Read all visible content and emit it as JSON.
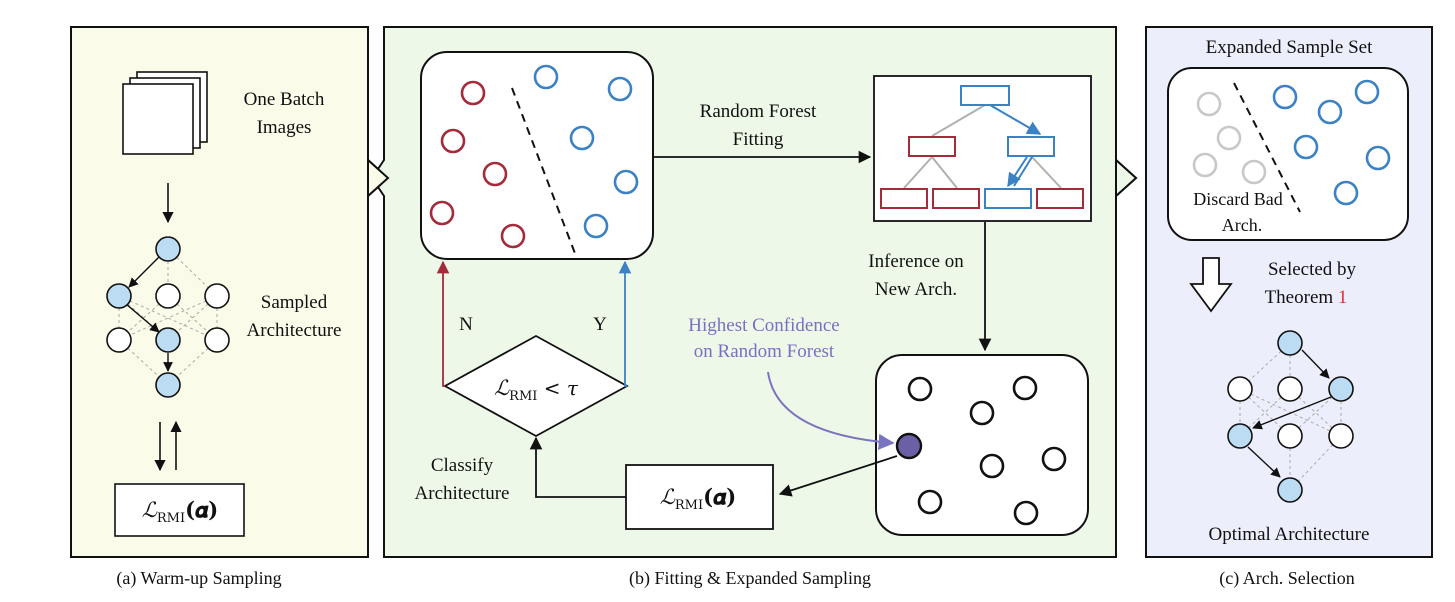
{
  "panels": {
    "a": {
      "caption": "(a) Warm-up Sampling",
      "images_label_1": "One Batch",
      "images_label_2": "Images",
      "arch_label_1": "Sampled",
      "arch_label_2": "Architecture",
      "loss_main": "ℒ",
      "loss_sub": "RMI",
      "loss_arg": "(𝜶)"
    },
    "b": {
      "caption": "(b) Fitting & Expanded Sampling",
      "rf_label_1": "Random Forest",
      "rf_label_2": "Fitting",
      "infer_label_1": "Inference on",
      "infer_label_2": "New Arch.",
      "highest_1": "Highest Confidence",
      "highest_2": "on Random Forest",
      "no_label": "N",
      "yes_label": "Y",
      "classify_1": "Classify",
      "classify_2": "Architecture",
      "cond_main": "ℒ",
      "cond_sub": "RMI",
      "cond_rest": " < τ",
      "loss_main": "ℒ",
      "loss_sub": "RMI",
      "loss_arg": "(𝜶)"
    },
    "c": {
      "caption": "(c) Arch. Selection",
      "title": "Expanded Sample Set",
      "discard_1": "Discard Bad",
      "discard_2": "Arch.",
      "selected_1": "Selected by",
      "selected_2": "Theorem ",
      "theorem_ref": "1",
      "optimal": "Optimal Architecture"
    }
  },
  "colors": {
    "panel_a_bg": "#fbfbe9",
    "panel_b_bg": "#eef8e8",
    "panel_c_bg": "#eceffb",
    "red": "#a52a3a",
    "blue": "#3b82c4",
    "node_blue": "#bcdcf4",
    "node_purple": "#6b5fa6",
    "highlight_text": "#7a6fc4",
    "theorem_red": "#e03030",
    "gray": "#c8c8c8"
  }
}
